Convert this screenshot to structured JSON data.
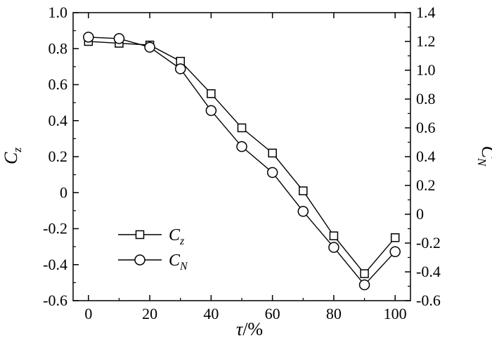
{
  "chart_data": {
    "type": "line",
    "x": [
      0,
      10,
      20,
      30,
      40,
      50,
      60,
      70,
      80,
      90,
      100
    ],
    "xlabel": {
      "main": "τ",
      "suffix": "/%"
    },
    "xlim": [
      -5,
      105
    ],
    "xticks": [
      "0",
      "20",
      "40",
      "60",
      "80",
      "100"
    ],
    "xtick_values": [
      0,
      20,
      40,
      60,
      80,
      100
    ],
    "y_left": {
      "label_main": "C",
      "label_sub": "z",
      "lim": [
        -0.6,
        1.0
      ],
      "ticks": [
        "1.0",
        "0.8",
        "0.6",
        "0.4",
        "0.2",
        "0",
        "-0.2",
        "-0.4",
        "-0.6"
      ],
      "tick_values": [
        1.0,
        0.8,
        0.6,
        0.4,
        0.2,
        0,
        -0.2,
        -0.4,
        -0.6
      ]
    },
    "y_right": {
      "label_main": "C",
      "label_sub": "N",
      "lim": [
        -0.6,
        1.4
      ],
      "ticks": [
        "1.4",
        "1.2",
        "1.0",
        "0.8",
        "0.6",
        "0.4",
        "0.2",
        "0",
        "-0.2",
        "-0.4",
        "-0.6"
      ],
      "tick_values": [
        1.4,
        1.2,
        1.0,
        0.8,
        0.6,
        0.4,
        0.2,
        0,
        -0.2,
        -0.4,
        -0.6
      ]
    },
    "series": [
      {
        "name_main": "C",
        "name_sub": "z",
        "axis": "left",
        "marker": "square",
        "values": [
          0.84,
          0.83,
          0.82,
          0.73,
          0.55,
          0.36,
          0.22,
          0.01,
          -0.24,
          -0.45,
          -0.25
        ]
      },
      {
        "name_main": "C",
        "name_sub": "N",
        "axis": "right",
        "marker": "circle",
        "values": [
          1.23,
          1.22,
          1.16,
          1.01,
          0.72,
          0.47,
          0.29,
          0.02,
          -0.23,
          -0.49,
          -0.26
        ]
      }
    ],
    "legend_position": "bottom-left",
    "grid": false
  }
}
